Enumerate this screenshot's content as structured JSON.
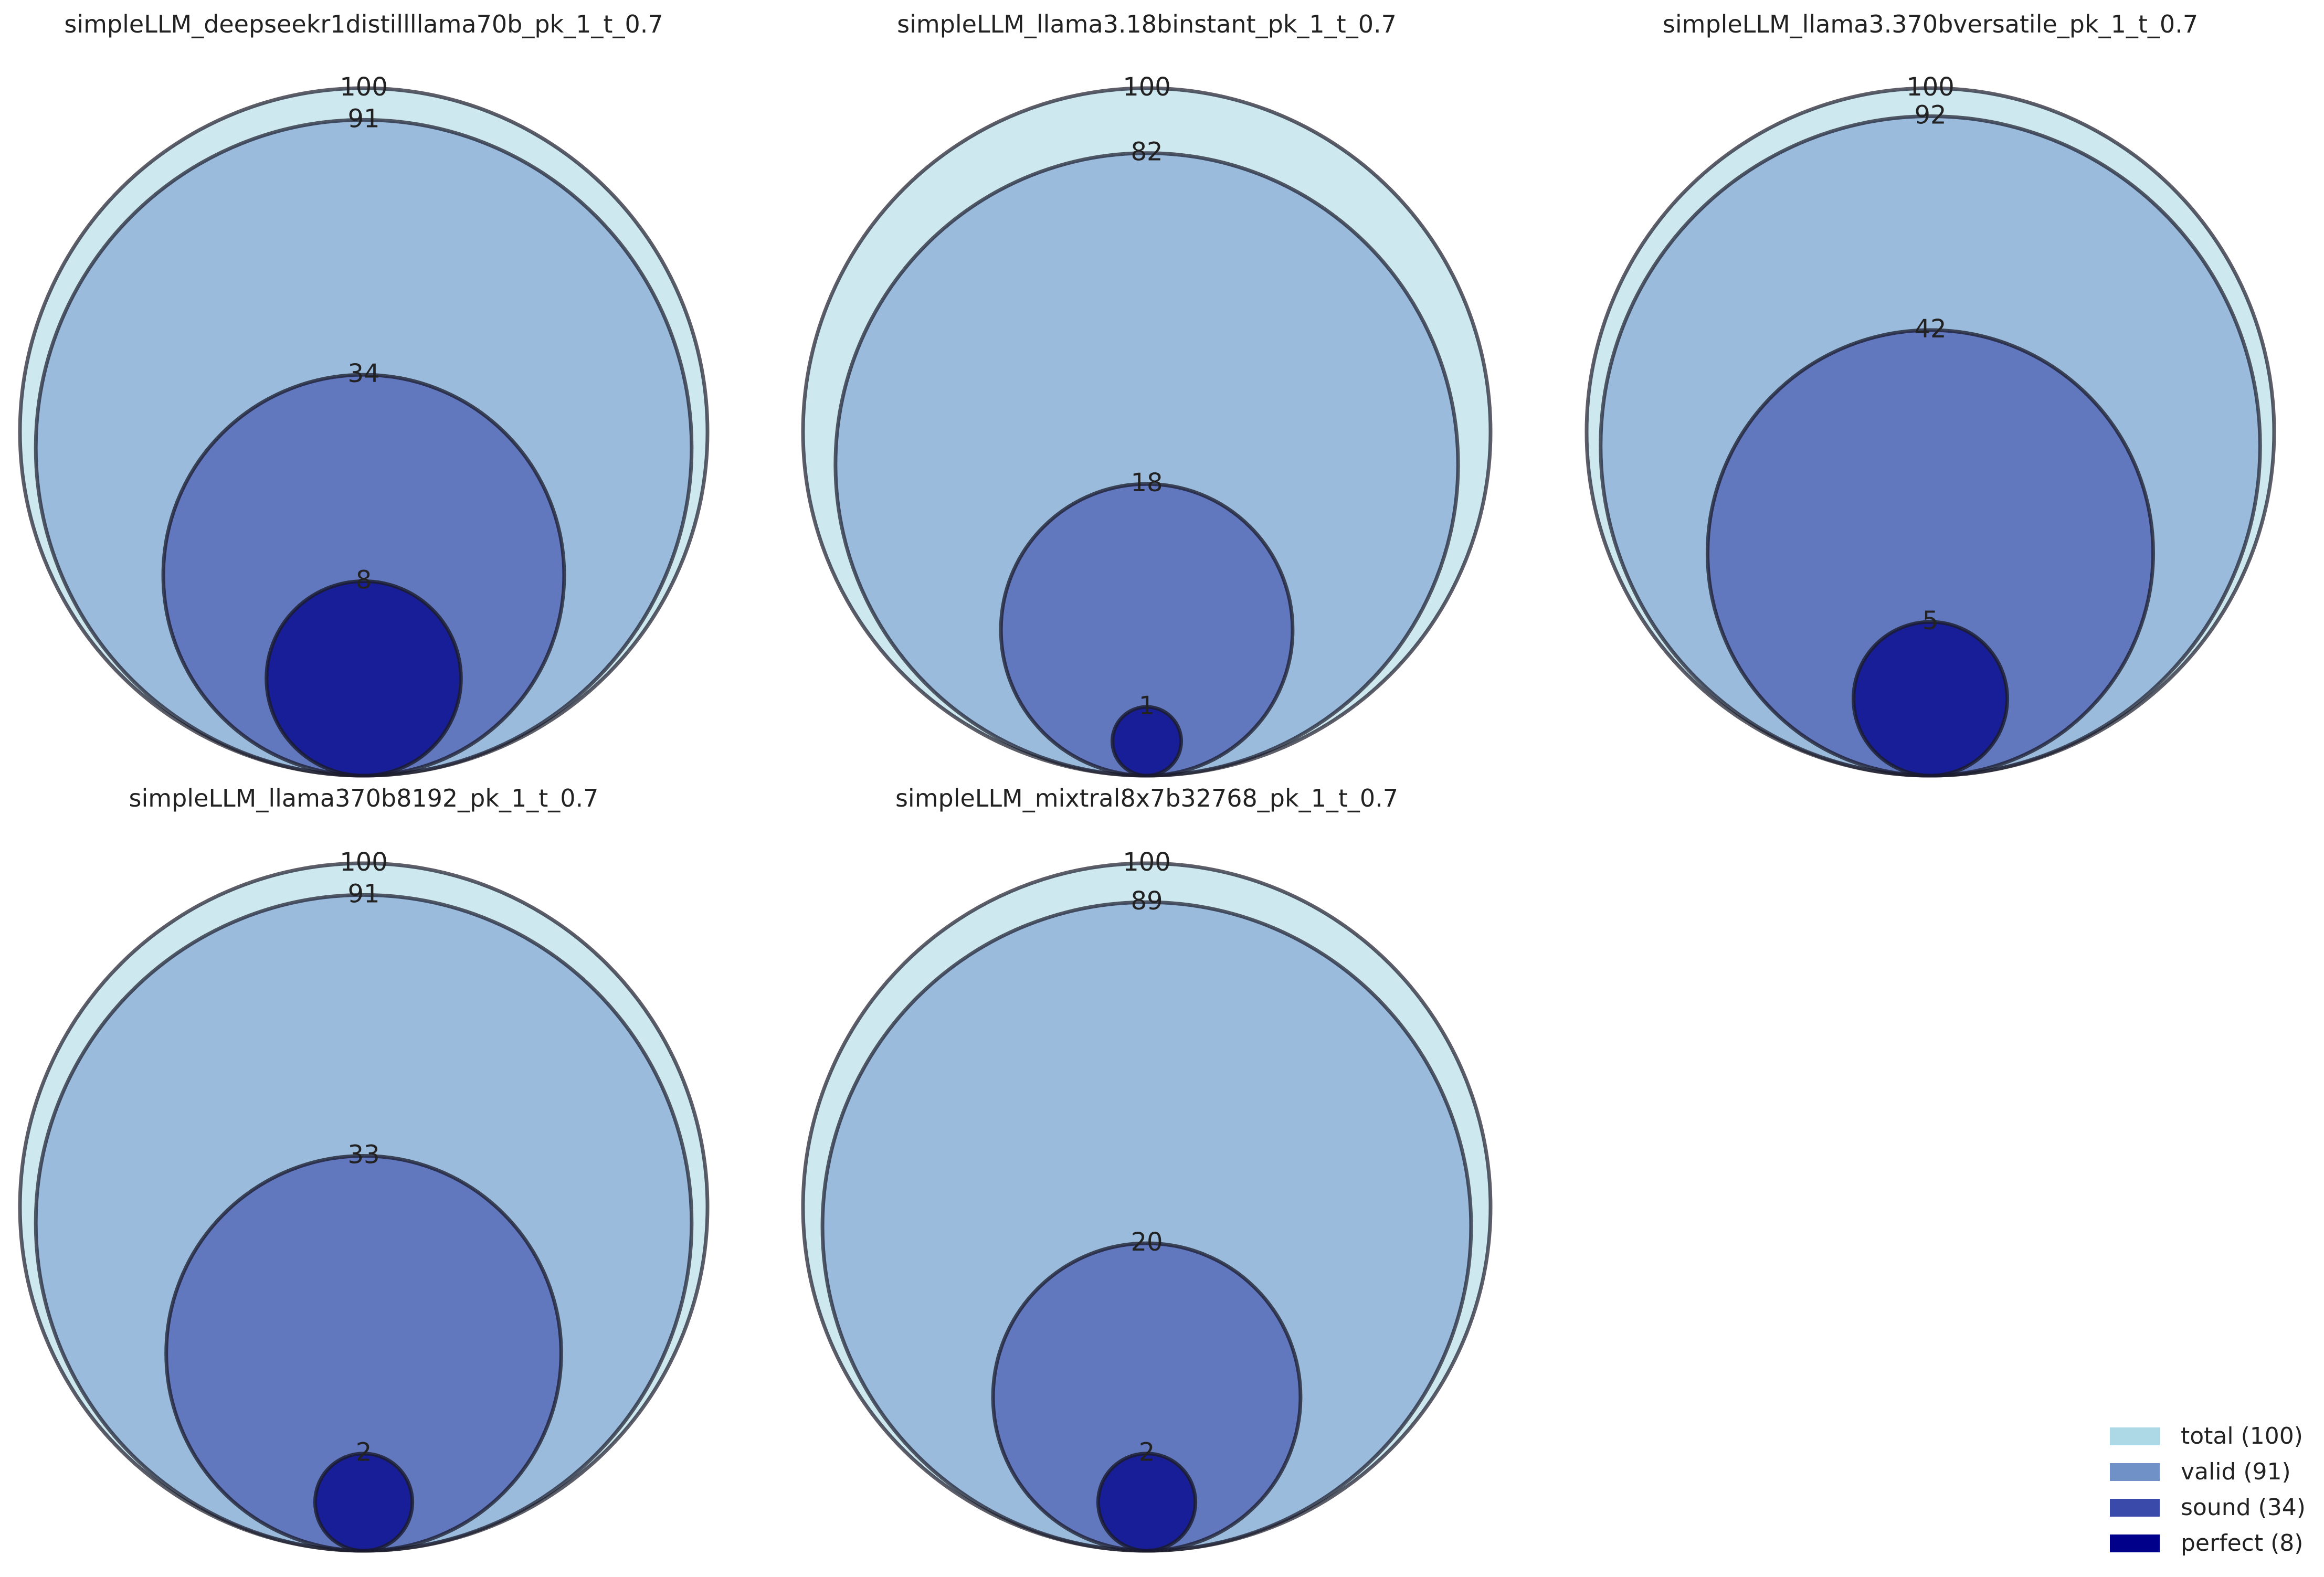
{
  "chart_data": [
    {
      "type": "nested-circles",
      "title": "simpleLLM_deepseekr1distillllama70b_pk_1_t_0.7",
      "series": [
        {
          "name": "total",
          "value": 100
        },
        {
          "name": "valid",
          "value": 91
        },
        {
          "name": "sound",
          "value": 34
        },
        {
          "name": "perfect",
          "value": 8
        }
      ]
    },
    {
      "type": "nested-circles",
      "title": "simpleLLM_llama3.18binstant_pk_1_t_0.7",
      "series": [
        {
          "name": "total",
          "value": 100
        },
        {
          "name": "valid",
          "value": 82
        },
        {
          "name": "sound",
          "value": 18
        },
        {
          "name": "perfect",
          "value": 1
        }
      ]
    },
    {
      "type": "nested-circles",
      "title": "simpleLLM_llama3.370bversatile_pk_1_t_0.7",
      "series": [
        {
          "name": "total",
          "value": 100
        },
        {
          "name": "valid",
          "value": 92
        },
        {
          "name": "sound",
          "value": 42
        },
        {
          "name": "perfect",
          "value": 5
        }
      ]
    },
    {
      "type": "nested-circles",
      "title": "simpleLLM_llama370b8192_pk_1_t_0.7",
      "series": [
        {
          "name": "total",
          "value": 100
        },
        {
          "name": "valid",
          "value": 91
        },
        {
          "name": "sound",
          "value": 33
        },
        {
          "name": "perfect",
          "value": 2
        }
      ]
    },
    {
      "type": "nested-circles",
      "title": "simpleLLM_mixtral8x7b32768_pk_1_t_0.7",
      "series": [
        {
          "name": "total",
          "value": 100
        },
        {
          "name": "valid",
          "value": 89
        },
        {
          "name": "sound",
          "value": 20
        },
        {
          "name": "perfect",
          "value": 2
        }
      ]
    }
  ],
  "legend": {
    "placement": "bottom-right",
    "items": [
      {
        "label": "total (100)",
        "color": "#add8e6"
      },
      {
        "label": "valid (91)",
        "color": "#7090c8"
      },
      {
        "label": "sound (34)",
        "color": "#3a4aaa"
      },
      {
        "label": "perfect (8)",
        "color": "#00008b"
      }
    ]
  },
  "colors": {
    "total": "#add8e6",
    "valid": "#7a9ccf",
    "sound": "#3a4aaa",
    "perfect": "#00008b",
    "stroke": "#1a1a2a"
  }
}
